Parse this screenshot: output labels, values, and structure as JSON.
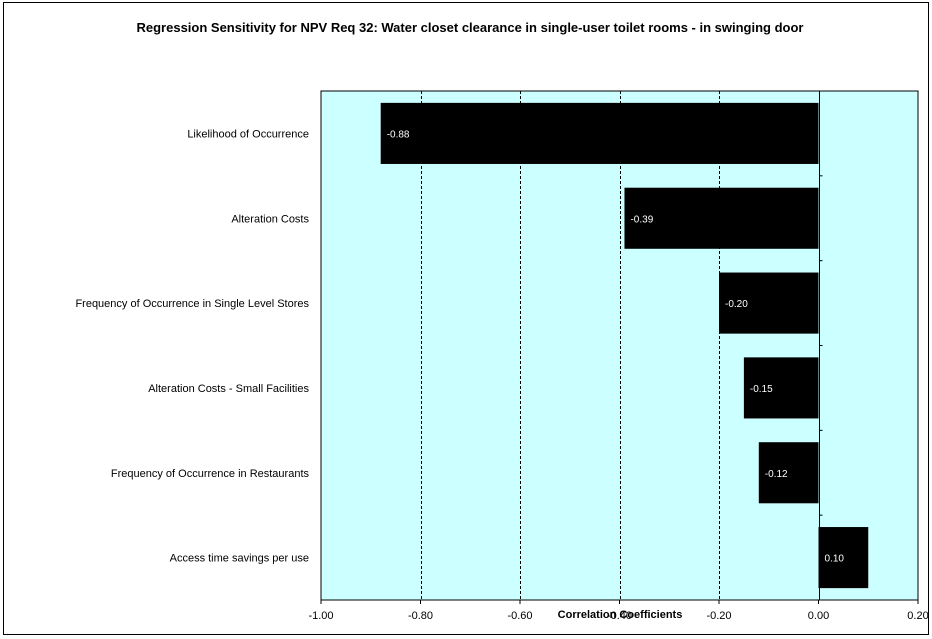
{
  "chart_data": {
    "type": "bar",
    "orientation": "horizontal",
    "title": "Regression Sensitivity for NPV Req 32: Water closet clearance in single-user toilet rooms - in swinging door",
    "xlabel": "Correlation Coefficients",
    "ylabel": "",
    "xlim": [
      -1.0,
      0.2
    ],
    "xticks": [
      "-1.00",
      "-0.80",
      "-0.60",
      "-0.40",
      "-0.20",
      "0.00",
      "0.20"
    ],
    "tick_values": [
      -1.0,
      -0.8,
      -0.6,
      -0.4,
      -0.2,
      0.0,
      0.2
    ],
    "categories": [
      "Likelihood of Occurrence",
      "Alteration Costs",
      "Frequency of Occurrence in Single Level Stores",
      "Alteration Costs - Small Facilities",
      "Frequency of Occurrence in Restaurants",
      "Access time savings per use"
    ],
    "values": [
      -0.88,
      -0.39,
      -0.2,
      -0.15,
      -0.12,
      0.1
    ],
    "value_labels": [
      "-0.88",
      "-0.39",
      "-0.20",
      "-0.15",
      "-0.12",
      "0.10"
    ],
    "grid": "vertical dashed",
    "plot_background": "#ccffff",
    "bar_color": "#000000",
    "bar_label_color": "#ffffff"
  }
}
